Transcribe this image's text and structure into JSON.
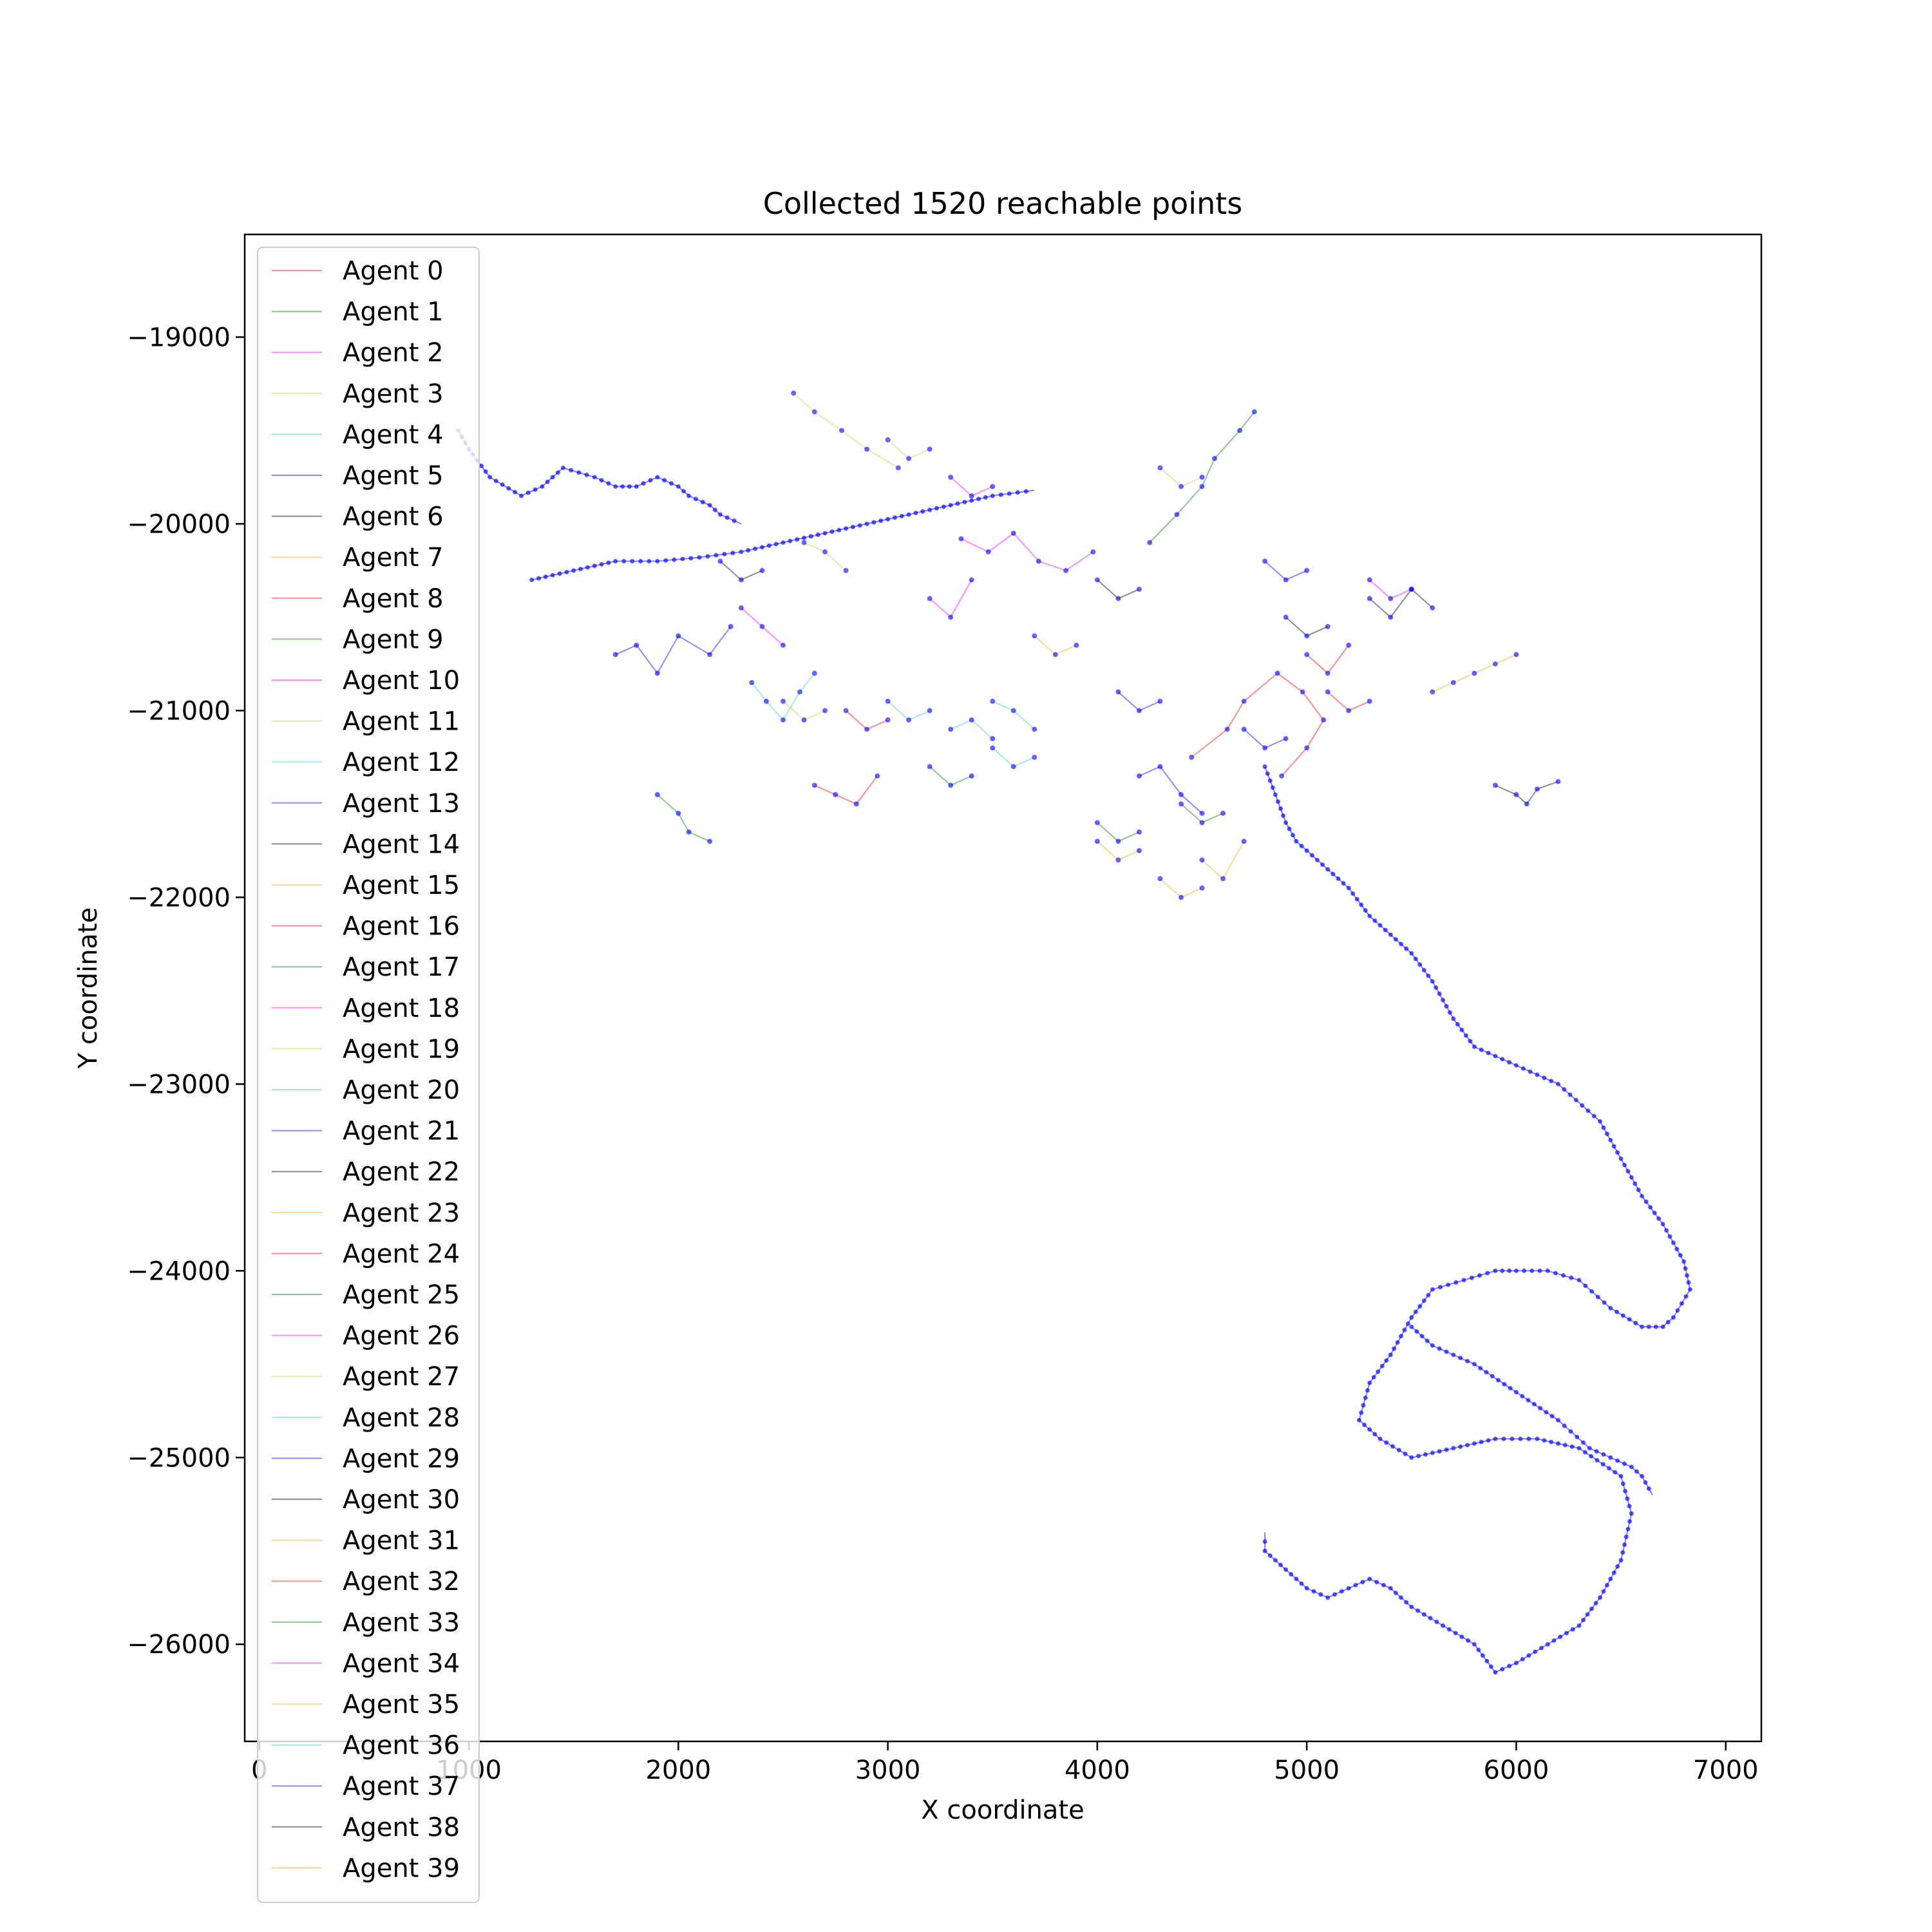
{
  "chart_data": {
    "type": "line",
    "title": "Collected 1520 reachable points",
    "xlabel": "X coordinate",
    "ylabel": "Y coordinate",
    "xlim": [
      -70,
      7170
    ],
    "ylim": [
      -26520,
      -18450
    ],
    "xticks": [
      0,
      1000,
      2000,
      3000,
      4000,
      5000,
      6000,
      7000
    ],
    "yticks": [
      -19000,
      -20000,
      -21000,
      -22000,
      -23000,
      -24000,
      -25000,
      -26000
    ],
    "xtick_labels": [
      "0",
      "1000",
      "2000",
      "3000",
      "4000",
      "5000",
      "6000",
      "7000"
    ],
    "ytick_labels": [
      "−19000",
      "−20000",
      "−21000",
      "−22000",
      "−23000",
      "−24000",
      "−25000",
      "−26000"
    ],
    "grid": false,
    "legend_position": "upper-left",
    "point_color": "#0000ff",
    "agent_colors": [
      "#ff0000",
      "#008000",
      "#ff00ff",
      "#cccc33",
      "#33cccc",
      "#0000ff",
      "#000000",
      "#ffa500"
    ],
    "series": [
      {
        "name": "Agent 0",
        "x": [
          4450,
          4620,
          4700,
          4860,
          4980,
          5080,
          5000,
          4880
        ],
        "y": [
          -21250,
          -21100,
          -20950,
          -20800,
          -20900,
          -21050,
          -21200,
          -21350
        ]
      },
      {
        "name": "Agent 1",
        "x": [
          4250,
          4380,
          4500,
          4560,
          4680,
          4750
        ],
        "y": [
          -20100,
          -19950,
          -19800,
          -19650,
          -19500,
          -19400
        ]
      },
      {
        "name": "Agent 2",
        "x": [
          3350,
          3480,
          3600,
          3720,
          3850,
          3980
        ],
        "y": [
          -20080,
          -20150,
          -20050,
          -20200,
          -20250,
          -20150
        ]
      },
      {
        "name": "Agent 3",
        "x": [
          2550,
          2650,
          2780,
          2900,
          3050
        ],
        "y": [
          -19300,
          -19400,
          -19500,
          -19600,
          -19700
        ]
      },
      {
        "name": "Agent 4",
        "x": [
          2350,
          2420,
          2500,
          2580,
          2650
        ],
        "y": [
          -20850,
          -20950,
          -21050,
          -20900,
          -20800
        ]
      },
      {
        "name": "Agent 5",
        "x": [
          1700,
          1800,
          1900,
          2000,
          2150,
          2250
        ],
        "y": [
          -20700,
          -20650,
          -20800,
          -20600,
          -20700,
          -20550
        ]
      },
      {
        "name": "Agent 6",
        "x": [
          5900,
          6000,
          6050,
          6100,
          6200
        ],
        "y": [
          -21400,
          -21450,
          -21500,
          -21420,
          -21380
        ]
      },
      {
        "name": "Agent 7",
        "x": [
          5600,
          5700,
          5800,
          5900,
          6000
        ],
        "y": [
          -20900,
          -20850,
          -20800,
          -20750,
          -20700
        ]
      },
      {
        "name": "Agent 8",
        "x": [
          2650,
          2750,
          2850,
          2950
        ],
        "y": [
          -21400,
          -21450,
          -21500,
          -21350
        ]
      },
      {
        "name": "Agent 9",
        "x": [
          1900,
          2000,
          2050,
          2150
        ],
        "y": [
          -21450,
          -21550,
          -21650,
          -21700
        ]
      },
      {
        "name": "Agent 10",
        "x": [
          2300,
          2400,
          2500
        ],
        "y": [
          -20450,
          -20550,
          -20650
        ]
      },
      {
        "name": "Agent 11",
        "x": [
          2600,
          2700,
          2800
        ],
        "y": [
          -20100,
          -20150,
          -20250
        ]
      },
      {
        "name": "Agent 12",
        "x": [
          3500,
          3600,
          3700
        ],
        "y": [
          -20950,
          -21000,
          -21100
        ]
      },
      {
        "name": "Agent 13",
        "x": [
          4200,
          4300,
          4400,
          4500
        ],
        "y": [
          -21350,
          -21300,
          -21450,
          -21550
        ]
      },
      {
        "name": "Agent 14",
        "x": [
          5300,
          5400,
          5500,
          5600
        ],
        "y": [
          -20400,
          -20500,
          -20350,
          -20450
        ]
      },
      {
        "name": "Agent 15",
        "x": [
          4500,
          4600,
          4700
        ],
        "y": [
          -21800,
          -21900,
          -21700
        ]
      },
      {
        "name": "Agent 16",
        "x": [
          5000,
          5100,
          5200
        ],
        "y": [
          -20700,
          -20800,
          -20650
        ]
      },
      {
        "name": "Agent 17",
        "x": [
          4000,
          4100,
          4200
        ],
        "y": [
          -21600,
          -21700,
          -21650
        ]
      },
      {
        "name": "Agent 18",
        "x": [
          3200,
          3300,
          3400
        ],
        "y": [
          -20400,
          -20500,
          -20300
        ]
      },
      {
        "name": "Agent 19",
        "x": [
          3000,
          3100,
          3200
        ],
        "y": [
          -19550,
          -19650,
          -19600
        ]
      },
      {
        "name": "Agent 20",
        "x": [
          3300,
          3400,
          3500
        ],
        "y": [
          -21100,
          -21050,
          -21150
        ]
      },
      {
        "name": "Agent 21",
        "x": [
          4800,
          4900,
          5000
        ],
        "y": [
          -20200,
          -20300,
          -20250
        ]
      },
      {
        "name": "Agent 22",
        "x": [
          2200,
          2300,
          2400
        ],
        "y": [
          -20200,
          -20300,
          -20250
        ]
      },
      {
        "name": "Agent 23",
        "x": [
          4300,
          4400,
          4500
        ],
        "y": [
          -21900,
          -22000,
          -21950
        ]
      },
      {
        "name": "Agent 24",
        "x": [
          5100,
          5200,
          5300
        ],
        "y": [
          -20900,
          -21000,
          -20950
        ]
      },
      {
        "name": "Agent 25",
        "x": [
          4400,
          4500,
          4600
        ],
        "y": [
          -21500,
          -21600,
          -21550
        ]
      },
      {
        "name": "Agent 26",
        "x": [
          5300,
          5400,
          5500
        ],
        "y": [
          -20300,
          -20400,
          -20350
        ]
      },
      {
        "name": "Agent 27",
        "x": [
          4300,
          4400,
          4500
        ],
        "y": [
          -19700,
          -19800,
          -19750
        ]
      },
      {
        "name": "Agent 28",
        "x": [
          3500,
          3600,
          3700
        ],
        "y": [
          -21200,
          -21300,
          -21250
        ]
      },
      {
        "name": "Agent 29",
        "x": [
          4100,
          4200,
          4300
        ],
        "y": [
          -20900,
          -21000,
          -20950
        ]
      },
      {
        "name": "Agent 30",
        "x": [
          4900,
          5000,
          5100
        ],
        "y": [
          -20500,
          -20600,
          -20550
        ]
      },
      {
        "name": "Agent 31",
        "x": [
          3700,
          3800,
          3900
        ],
        "y": [
          -20600,
          -20700,
          -20650
        ]
      },
      {
        "name": "Agent 32",
        "x": [
          2800,
          2900,
          3000
        ],
        "y": [
          -21000,
          -21100,
          -21050
        ]
      },
      {
        "name": "Agent 33",
        "x": [
          3200,
          3300,
          3400
        ],
        "y": [
          -21300,
          -21400,
          -21350
        ]
      },
      {
        "name": "Agent 34",
        "x": [
          3300,
          3400,
          3500
        ],
        "y": [
          -19750,
          -19850,
          -19800
        ]
      },
      {
        "name": "Agent 35",
        "x": [
          2500,
          2600,
          2700
        ],
        "y": [
          -20950,
          -21050,
          -21000
        ]
      },
      {
        "name": "Agent 36",
        "x": [
          3000,
          3100,
          3200
        ],
        "y": [
          -20950,
          -21050,
          -21000
        ]
      },
      {
        "name": "Agent 37",
        "x": [
          4700,
          4800,
          4900
        ],
        "y": [
          -21100,
          -21200,
          -21150
        ]
      },
      {
        "name": "Agent 38",
        "x": [
          4000,
          4100,
          4200
        ],
        "y": [
          -20300,
          -20400,
          -20350
        ]
      },
      {
        "name": "Agent 39",
        "x": [
          4000,
          4100,
          4200
        ],
        "y": [
          -21700,
          -21800,
          -21750
        ]
      }
    ],
    "main_path": {
      "x": [
        950,
        1000,
        1100,
        1250,
        1350,
        1450,
        1600,
        1700,
        1800,
        1900,
        2000,
        2050,
        2150,
        2200,
        2300
      ],
      "y": [
        -19500,
        -19600,
        -19750,
        -19850,
        -19800,
        -19700,
        -19750,
        -19800,
        -19800,
        -19750,
        -19800,
        -19850,
        -19900,
        -19950,
        -20000
      ]
    },
    "main_path_3": {
      "x": [
        1300,
        1500,
        1700,
        1900,
        2100,
        2300,
        2500,
        2700,
        2900,
        3100,
        3300,
        3500,
        3700
      ],
      "y": [
        -20300,
        -20250,
        -20200,
        -20200,
        -20180,
        -20150,
        -20100,
        -20050,
        -20000,
        -19950,
        -19900,
        -19850,
        -19820
      ]
    },
    "main_path_2": {
      "x": [
        4800,
        4850,
        4900,
        4950,
        5000,
        5100,
        5200,
        5300,
        5400,
        5500,
        5600,
        5700,
        5800,
        5900,
        6000,
        6200,
        6400,
        6500,
        6600,
        6700,
        6800,
        6830,
        6750,
        6700,
        6600,
        6450,
        6300,
        6150,
        6000,
        5900,
        5750,
        5600,
        5500,
        5400,
        5300,
        5250,
        5350,
        5500,
        5700,
        5900,
        6100,
        6300,
        6500,
        6550,
        6500,
        6400,
        6300,
        6150,
        6000,
        5900,
        5800,
        5650,
        5500,
        5400,
        5300,
        5200,
        5100,
        5000,
        4900,
        4800,
        4800
      ],
      "y": [
        -21300,
        -21450,
        -21600,
        -21700,
        -21750,
        -21850,
        -21950,
        -22100,
        -22200,
        -22300,
        -22450,
        -22650,
        -22800,
        -22850,
        -22900,
        -23000,
        -23200,
        -23400,
        -23600,
        -23750,
        -23950,
        -24100,
        -24250,
        -24300,
        -24300,
        -24200,
        -24050,
        -24000,
        -24000,
        -24000,
        -24050,
        -24100,
        -24250,
        -24450,
        -24600,
        -24800,
        -24900,
        -25000,
        -24950,
        -24900,
        -24900,
        -24950,
        -25100,
        -25300,
        -25550,
        -25750,
        -25900,
        -26000,
        -26100,
        -26150,
        -26000,
        -25900,
        -25800,
        -25700,
        -25650,
        -25700,
        -25750,
        -25700,
        -25600,
        -25500,
        -25400
      ]
    },
    "main_path_4": {
      "x": [
        5500,
        5600,
        5800,
        6000,
        6200,
        6350,
        6450,
        6550,
        6600,
        6650
      ],
      "y": [
        -24300,
        -24400,
        -24500,
        -24650,
        -24800,
        -24950,
        -25000,
        -25050,
        -25100,
        -25200
      ]
    }
  }
}
